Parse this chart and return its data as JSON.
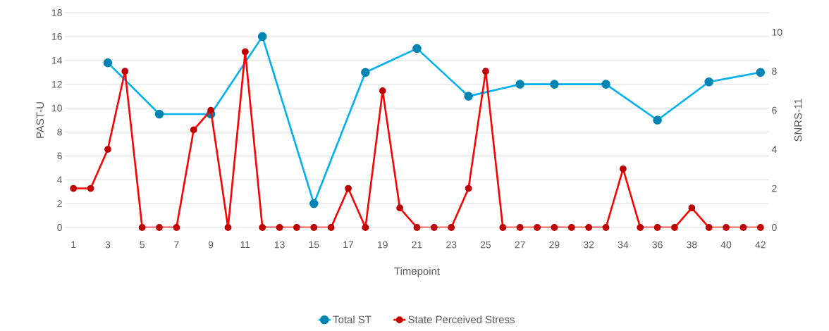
{
  "chart_data": {
    "type": "line",
    "xlabel": "Timepoint",
    "ylabel": "PAST-U",
    "y2label": "SNRS-11",
    "categories": [
      "1",
      null,
      "3",
      null,
      "5",
      null,
      "7",
      null,
      "9",
      null,
      "11",
      null,
      "13",
      null,
      "15",
      null,
      "17",
      null,
      "19",
      null,
      "21",
      null,
      "23",
      null,
      "25",
      null,
      "27",
      null,
      "29",
      null,
      "32",
      null,
      "34",
      null,
      "36",
      null,
      "38",
      null,
      "40",
      null,
      "42"
    ],
    "series": [
      {
        "name": "Total ST",
        "color": "#00b0f0",
        "axis": "y",
        "values": [
          null,
          null,
          13.8,
          null,
          null,
          9.5,
          null,
          null,
          9.5,
          null,
          null,
          16,
          null,
          null,
          2,
          null,
          null,
          13,
          null,
          null,
          15,
          null,
          null,
          11,
          null,
          null,
          12,
          null,
          12,
          null,
          null,
          12,
          null,
          null,
          9,
          null,
          null,
          12.2,
          null,
          null,
          13
        ]
      },
      {
        "name": "State Perceived Stress",
        "color": "#ff0000",
        "axis": "y2",
        "values": [
          2,
          2,
          4,
          8,
          0,
          0,
          0,
          5,
          6,
          0,
          9,
          0,
          0,
          0,
          0,
          0,
          2,
          0,
          7,
          1,
          0,
          0,
          0,
          2,
          8,
          0,
          0,
          0,
          0,
          0,
          0,
          0,
          3,
          0,
          0,
          0,
          1,
          0,
          0,
          0,
          0
        ]
      }
    ],
    "ylim": [
      0,
      18
    ],
    "yticks": [
      0,
      2,
      4,
      6,
      8,
      10,
      12,
      14,
      16,
      18
    ],
    "y2lim": [
      0,
      11
    ],
    "y2ticks": [
      0,
      2,
      4,
      6,
      8,
      10
    ],
    "grid": "y",
    "legend": "bottom",
    "marker": "circle",
    "line_style": "solid"
  }
}
